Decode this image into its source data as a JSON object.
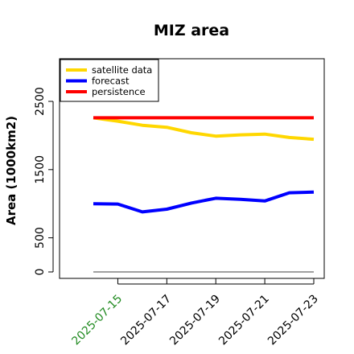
{
  "chart_data": {
    "type": "line",
    "title": "MIZ area",
    "xlabel": "",
    "ylabel": "Area (1000km2)",
    "x": [
      "2025-07-14",
      "2025-07-15",
      "2025-07-16",
      "2025-07-17",
      "2025-07-18",
      "2025-07-19",
      "2025-07-20",
      "2025-07-21",
      "2025-07-22",
      "2025-07-23"
    ],
    "x_ticks": [
      "2025-07-15",
      "2025-07-17",
      "2025-07-19",
      "2025-07-21",
      "2025-07-23"
    ],
    "x_tick_highlight": "2025-07-15",
    "ylim": [
      -50,
      2800
    ],
    "y_ticks": [
      0,
      500,
      1500,
      2500
    ],
    "series": [
      {
        "name": "satellite data",
        "color": "#FFD700",
        "values": [
          2260,
          2210,
          2150,
          2120,
          2040,
          1990,
          2010,
          2020,
          1970,
          1945
        ]
      },
      {
        "name": "forecast",
        "color": "#0000FF",
        "values": [
          1000,
          995,
          880,
          920,
          1010,
          1080,
          1065,
          1040,
          1160,
          1170
        ]
      },
      {
        "name": "persistence",
        "color": "#FF0000",
        "values": [
          2260,
          2260,
          2260,
          2260,
          2260,
          2260,
          2260,
          2260,
          2260,
          2260
        ]
      }
    ],
    "baseline": {
      "value": 0,
      "color": "#808080"
    },
    "legend_position": "top-left",
    "grid": false
  },
  "colors": {
    "axis": "#000000",
    "highlight_tick": "#228B22"
  }
}
